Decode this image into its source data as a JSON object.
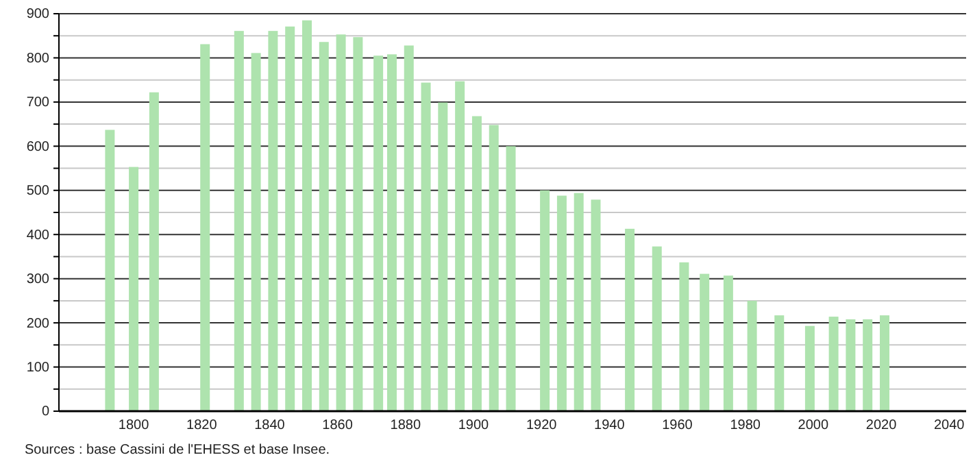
{
  "chart_data": {
    "type": "bar",
    "x": [
      1793,
      1800,
      1806,
      1821,
      1831,
      1836,
      1841,
      1846,
      1851,
      1856,
      1861,
      1866,
      1872,
      1876,
      1881,
      1886,
      1891,
      1896,
      1901,
      1906,
      1911,
      1921,
      1926,
      1931,
      1936,
      1946,
      1954,
      1962,
      1968,
      1975,
      1982,
      1990,
      1999,
      2006,
      2011,
      2016,
      2021
    ],
    "values": [
      637,
      553,
      722,
      831,
      861,
      811,
      861,
      871,
      885,
      836,
      853,
      847,
      805,
      808,
      828,
      744,
      699,
      747,
      668,
      648,
      600,
      500,
      488,
      494,
      479,
      413,
      373,
      337,
      311,
      307,
      250,
      217,
      193,
      214,
      208,
      208,
      217
    ],
    "color": "#aee3ae",
    "xlim": [
      1778,
      2045
    ],
    "xticks": [
      1800,
      1820,
      1840,
      1860,
      1880,
      1900,
      1920,
      1940,
      1960,
      1980,
      2000,
      2020,
      2040
    ],
    "ylim": [
      0,
      900
    ],
    "yticks": [
      0,
      {
        "value": 50,
        "label": null
      },
      100,
      {
        "value": 150,
        "label": null
      },
      200,
      {
        "value": 250,
        "label": null
      },
      300,
      {
        "value": 350,
        "label": null
      },
      400,
      {
        "value": 450,
        "label": null
      },
      500,
      {
        "value": 550,
        "label": null
      },
      600,
      {
        "value": 650,
        "label": null
      },
      700,
      {
        "value": 750,
        "label": null
      },
      800,
      {
        "value": 850,
        "label": null
      },
      900
    ],
    "grid": "y",
    "annotations": [
      "Sources : base Cassini de l'EHESS et base Insee."
    ]
  }
}
